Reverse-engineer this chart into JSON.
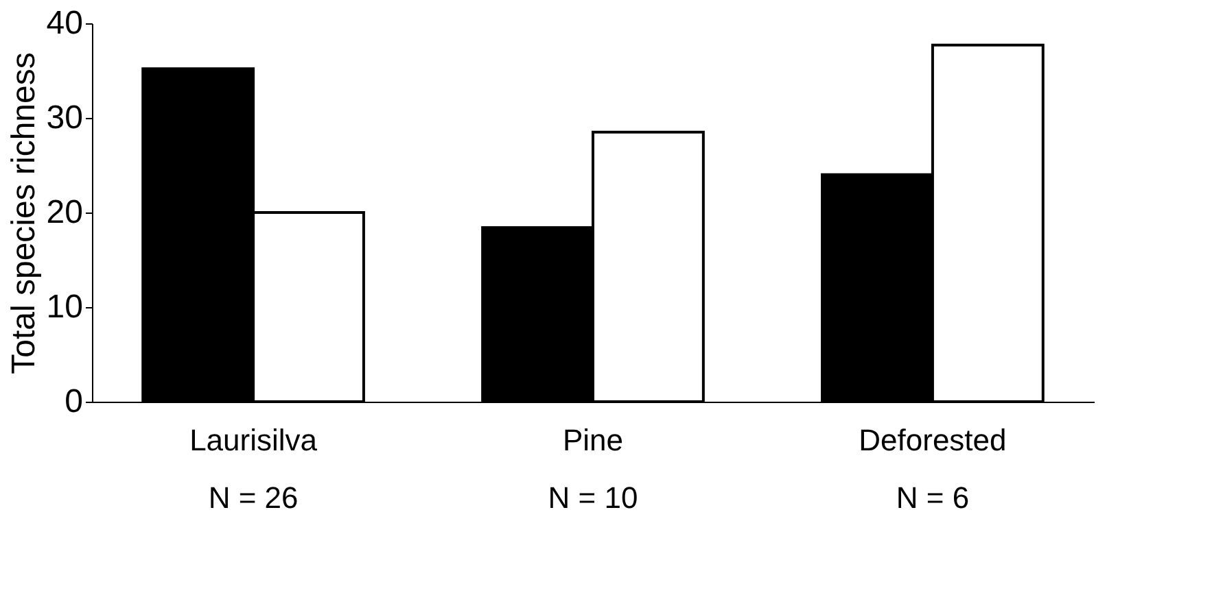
{
  "chart_data": {
    "type": "bar",
    "ylabel": "Total species richness",
    "categories": [
      "Laurisilva\nN = 26",
      "Pine\nN = 10",
      "Deforested\nN = 6"
    ],
    "series": [
      {
        "color": "#000000",
        "values": [
          35.2,
          18.4,
          24.0
        ]
      },
      {
        "color": "#ffffff",
        "values": [
          20.0,
          28.5,
          37.7
        ]
      }
    ],
    "ylim": [
      0,
      40
    ],
    "yticks": [
      0,
      10,
      20,
      30,
      40
    ],
    "grid": false
  }
}
